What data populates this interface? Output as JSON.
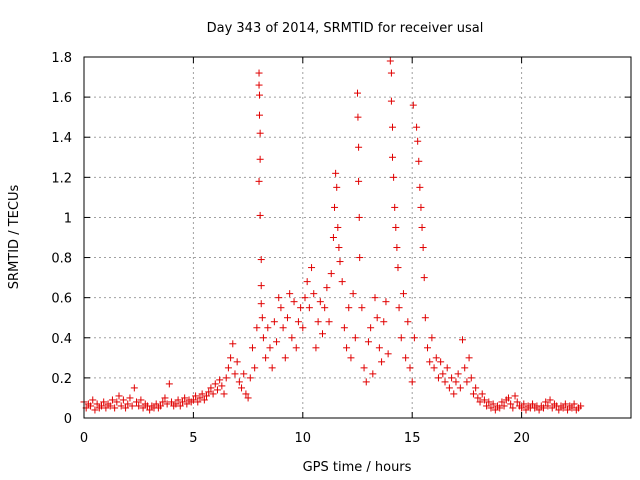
{
  "chart_data": {
    "type": "scatter",
    "title": "Day 343 of 2014, SRMTID for receiver usal",
    "xlabel": "GPS time / hours",
    "ylabel": "SRMTID / TECUs",
    "xlim": [
      0,
      25
    ],
    "ylim": [
      0,
      1.8
    ],
    "xticks": [
      0,
      5,
      10,
      15,
      20
    ],
    "xtick_labels": [
      "0",
      "5",
      "10",
      "15",
      "20"
    ],
    "yticks": [
      0,
      0.2,
      0.4,
      0.6,
      0.8,
      1,
      1.2,
      1.4,
      1.6,
      1.8
    ],
    "ytick_labels": [
      "0",
      "0.2",
      "0.4",
      "0.6",
      "0.8",
      "1",
      "1.2",
      "1.4",
      "1.6",
      "1.8"
    ],
    "grid": true,
    "marker": "plus",
    "marker_color": "#e00000",
    "series": [
      {
        "name": "SRMTID",
        "points": [
          [
            0.0,
            0.08
          ],
          [
            0.1,
            0.05
          ],
          [
            0.2,
            0.07
          ],
          [
            0.3,
            0.06
          ],
          [
            0.4,
            0.09
          ],
          [
            0.5,
            0.04
          ],
          [
            0.6,
            0.07
          ],
          [
            0.7,
            0.05
          ],
          [
            0.8,
            0.06
          ],
          [
            0.9,
            0.08
          ],
          [
            1.0,
            0.05
          ],
          [
            1.1,
            0.07
          ],
          [
            1.2,
            0.06
          ],
          [
            1.3,
            0.09
          ],
          [
            1.4,
            0.05
          ],
          [
            1.5,
            0.08
          ],
          [
            1.6,
            0.11
          ],
          [
            1.7,
            0.06
          ],
          [
            1.8,
            0.09
          ],
          [
            1.9,
            0.05
          ],
          [
            2.0,
            0.07
          ],
          [
            2.1,
            0.1
          ],
          [
            2.2,
            0.06
          ],
          [
            2.3,
            0.15
          ],
          [
            2.4,
            0.08
          ],
          [
            2.5,
            0.06
          ],
          [
            2.6,
            0.09
          ],
          [
            2.7,
            0.05
          ],
          [
            2.8,
            0.07
          ],
          [
            2.9,
            0.06
          ],
          [
            3.0,
            0.04
          ],
          [
            3.1,
            0.06
          ],
          [
            3.2,
            0.05
          ],
          [
            3.3,
            0.07
          ],
          [
            3.4,
            0.05
          ],
          [
            3.5,
            0.06
          ],
          [
            3.6,
            0.08
          ],
          [
            3.7,
            0.1
          ],
          [
            3.8,
            0.07
          ],
          [
            3.9,
            0.17
          ],
          [
            4.0,
            0.08
          ],
          [
            4.1,
            0.06
          ],
          [
            4.2,
            0.07
          ],
          [
            4.3,
            0.09
          ],
          [
            4.4,
            0.06
          ],
          [
            4.5,
            0.08
          ],
          [
            4.6,
            0.1
          ],
          [
            4.7,
            0.07
          ],
          [
            4.8,
            0.09
          ],
          [
            4.9,
            0.08
          ],
          [
            5.0,
            0.09
          ],
          [
            5.1,
            0.11
          ],
          [
            5.2,
            0.08
          ],
          [
            5.3,
            0.1
          ],
          [
            5.4,
            0.12
          ],
          [
            5.5,
            0.09
          ],
          [
            5.6,
            0.11
          ],
          [
            5.7,
            0.13
          ],
          [
            5.8,
            0.15
          ],
          [
            5.9,
            0.12
          ],
          [
            6.0,
            0.17
          ],
          [
            6.1,
            0.14
          ],
          [
            6.2,
            0.19
          ],
          [
            6.3,
            0.16
          ],
          [
            6.4,
            0.12
          ],
          [
            6.5,
            0.2
          ],
          [
            6.6,
            0.25
          ],
          [
            6.7,
            0.3
          ],
          [
            6.8,
            0.37
          ],
          [
            6.9,
            0.22
          ],
          [
            7.0,
            0.28
          ],
          [
            7.1,
            0.18
          ],
          [
            7.2,
            0.15
          ],
          [
            7.3,
            0.22
          ],
          [
            7.4,
            0.12
          ],
          [
            7.5,
            0.1
          ],
          [
            7.6,
            0.2
          ],
          [
            7.7,
            0.35
          ],
          [
            7.8,
            0.25
          ],
          [
            7.9,
            0.45
          ],
          [
            8.0,
            1.72
          ],
          [
            8.0,
            1.66
          ],
          [
            8.02,
            1.61
          ],
          [
            8.02,
            1.51
          ],
          [
            8.05,
            1.42
          ],
          [
            8.05,
            1.29
          ],
          [
            8.0,
            1.18
          ],
          [
            8.05,
            1.01
          ],
          [
            8.1,
            0.79
          ],
          [
            8.1,
            0.66
          ],
          [
            8.1,
            0.57
          ],
          [
            8.15,
            0.5
          ],
          [
            8.2,
            0.4
          ],
          [
            8.3,
            0.3
          ],
          [
            8.4,
            0.45
          ],
          [
            8.5,
            0.35
          ],
          [
            8.6,
            0.25
          ],
          [
            8.7,
            0.48
          ],
          [
            8.8,
            0.38
          ],
          [
            8.9,
            0.6
          ],
          [
            9.0,
            0.55
          ],
          [
            9.1,
            0.45
          ],
          [
            9.2,
            0.3
          ],
          [
            9.3,
            0.5
          ],
          [
            9.4,
            0.62
          ],
          [
            9.5,
            0.4
          ],
          [
            9.6,
            0.58
          ],
          [
            9.7,
            0.35
          ],
          [
            9.8,
            0.48
          ],
          [
            9.9,
            0.55
          ],
          [
            10.0,
            0.45
          ],
          [
            10.1,
            0.6
          ],
          [
            10.2,
            0.68
          ],
          [
            10.3,
            0.55
          ],
          [
            10.4,
            0.75
          ],
          [
            10.5,
            0.62
          ],
          [
            10.6,
            0.35
          ],
          [
            10.7,
            0.48
          ],
          [
            10.8,
            0.58
          ],
          [
            10.9,
            0.42
          ],
          [
            11.0,
            0.55
          ],
          [
            11.1,
            0.65
          ],
          [
            11.2,
            0.48
          ],
          [
            11.3,
            0.72
          ],
          [
            11.4,
            0.9
          ],
          [
            11.45,
            1.05
          ],
          [
            11.5,
            1.22
          ],
          [
            11.55,
            1.15
          ],
          [
            11.6,
            0.95
          ],
          [
            11.65,
            0.85
          ],
          [
            11.7,
            0.78
          ],
          [
            11.8,
            0.68
          ],
          [
            11.9,
            0.45
          ],
          [
            12.0,
            0.35
          ],
          [
            12.1,
            0.55
          ],
          [
            12.2,
            0.3
          ],
          [
            12.3,
            0.62
          ],
          [
            12.4,
            0.4
          ],
          [
            12.5,
            1.62
          ],
          [
            12.52,
            1.5
          ],
          [
            12.55,
            1.35
          ],
          [
            12.55,
            1.18
          ],
          [
            12.58,
            1.0
          ],
          [
            12.6,
            0.8
          ],
          [
            12.7,
            0.55
          ],
          [
            12.8,
            0.25
          ],
          [
            12.9,
            0.18
          ],
          [
            13.0,
            0.38
          ],
          [
            13.1,
            0.45
          ],
          [
            13.2,
            0.22
          ],
          [
            13.3,
            0.6
          ],
          [
            13.4,
            0.5
          ],
          [
            13.5,
            0.35
          ],
          [
            13.6,
            0.28
          ],
          [
            13.7,
            0.48
          ],
          [
            13.8,
            0.58
          ],
          [
            13.9,
            0.32
          ],
          [
            14.0,
            1.78
          ],
          [
            14.05,
            1.72
          ],
          [
            14.05,
            1.58
          ],
          [
            14.1,
            1.45
          ],
          [
            14.1,
            1.3
          ],
          [
            14.15,
            1.2
          ],
          [
            14.2,
            1.05
          ],
          [
            14.25,
            0.95
          ],
          [
            14.3,
            0.85
          ],
          [
            14.35,
            0.75
          ],
          [
            14.4,
            0.55
          ],
          [
            14.5,
            0.4
          ],
          [
            14.6,
            0.62
          ],
          [
            14.7,
            0.3
          ],
          [
            14.8,
            0.48
          ],
          [
            14.9,
            0.25
          ],
          [
            15.0,
            0.18
          ],
          [
            15.05,
            1.56
          ],
          [
            15.1,
            0.4
          ],
          [
            15.2,
            1.45
          ],
          [
            15.25,
            1.38
          ],
          [
            15.3,
            1.28
          ],
          [
            15.35,
            1.15
          ],
          [
            15.4,
            1.05
          ],
          [
            15.45,
            0.95
          ],
          [
            15.5,
            0.85
          ],
          [
            15.55,
            0.7
          ],
          [
            15.6,
            0.5
          ],
          [
            15.7,
            0.35
          ],
          [
            15.8,
            0.28
          ],
          [
            15.9,
            0.4
          ],
          [
            16.0,
            0.25
          ],
          [
            16.1,
            0.3
          ],
          [
            16.2,
            0.2
          ],
          [
            16.3,
            0.28
          ],
          [
            16.4,
            0.22
          ],
          [
            16.5,
            0.18
          ],
          [
            16.6,
            0.25
          ],
          [
            16.7,
            0.15
          ],
          [
            16.8,
            0.2
          ],
          [
            16.9,
            0.12
          ],
          [
            17.0,
            0.18
          ],
          [
            17.1,
            0.22
          ],
          [
            17.2,
            0.15
          ],
          [
            17.3,
            0.39
          ],
          [
            17.4,
            0.25
          ],
          [
            17.5,
            0.18
          ],
          [
            17.6,
            0.3
          ],
          [
            17.7,
            0.2
          ],
          [
            17.8,
            0.12
          ],
          [
            17.9,
            0.15
          ],
          [
            18.0,
            0.1
          ],
          [
            18.1,
            0.08
          ],
          [
            18.2,
            0.12
          ],
          [
            18.3,
            0.09
          ],
          [
            18.4,
            0.06
          ],
          [
            18.5,
            0.08
          ],
          [
            18.6,
            0.05
          ],
          [
            18.7,
            0.07
          ],
          [
            18.8,
            0.04
          ],
          [
            18.9,
            0.06
          ],
          [
            19.0,
            0.05
          ],
          [
            19.1,
            0.08
          ],
          [
            19.2,
            0.06
          ],
          [
            19.3,
            0.09
          ],
          [
            19.4,
            0.1
          ],
          [
            19.5,
            0.07
          ],
          [
            19.6,
            0.05
          ],
          [
            19.7,
            0.11
          ],
          [
            19.8,
            0.08
          ],
          [
            19.9,
            0.06
          ],
          [
            20.0,
            0.05
          ],
          [
            20.1,
            0.07
          ],
          [
            20.2,
            0.04
          ],
          [
            20.3,
            0.06
          ],
          [
            20.4,
            0.05
          ],
          [
            20.5,
            0.07
          ],
          [
            20.6,
            0.05
          ],
          [
            20.7,
            0.06
          ],
          [
            20.8,
            0.04
          ],
          [
            20.9,
            0.06
          ],
          [
            21.0,
            0.05
          ],
          [
            21.1,
            0.08
          ],
          [
            21.2,
            0.06
          ],
          [
            21.3,
            0.09
          ],
          [
            21.4,
            0.05
          ],
          [
            21.5,
            0.07
          ],
          [
            21.6,
            0.06
          ],
          [
            21.7,
            0.04
          ],
          [
            21.8,
            0.06
          ],
          [
            21.9,
            0.05
          ],
          [
            22.0,
            0.07
          ],
          [
            22.1,
            0.04
          ],
          [
            22.2,
            0.06
          ],
          [
            22.3,
            0.05
          ],
          [
            22.4,
            0.07
          ],
          [
            22.5,
            0.04
          ],
          [
            22.6,
            0.05
          ],
          [
            22.7,
            0.06
          ]
        ]
      }
    ]
  }
}
